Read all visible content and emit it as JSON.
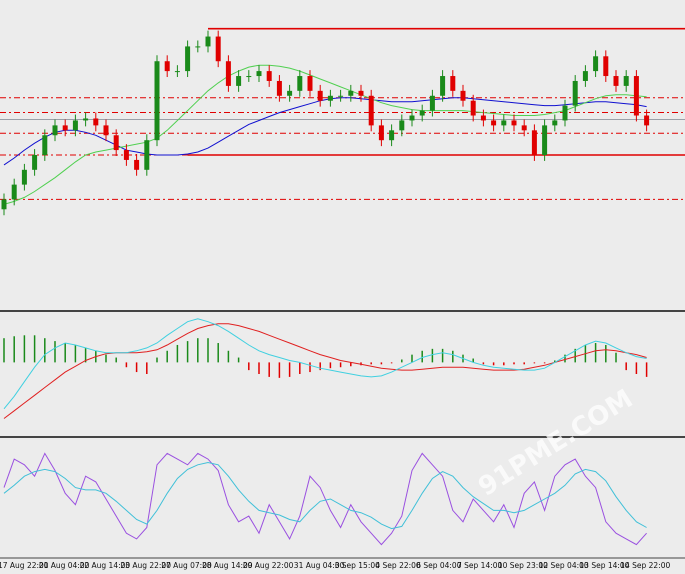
{
  "watermark": "91PME.COM",
  "chart_data": [
    {
      "type": "candlestick",
      "ylim": [
        0,
        310
      ],
      "up_color": "#1a8a1a",
      "down_color": "#e00000",
      "open": [
        100,
        110,
        125,
        140,
        155,
        175,
        185,
        180,
        190,
        192,
        185,
        175,
        160,
        150,
        140,
        170,
        250,
        240,
        240,
        265,
        265,
        275,
        250,
        225,
        235,
        235,
        240,
        230,
        215,
        220,
        235,
        220,
        210,
        215,
        215,
        220,
        215,
        185,
        170,
        180,
        190,
        195,
        200,
        215,
        235,
        220,
        210,
        195,
        190,
        185,
        190,
        185,
        180,
        155,
        185,
        190,
        205,
        230,
        240,
        255,
        235,
        225,
        235,
        195
      ],
      "high": [
        116,
        131,
        146,
        161,
        181,
        191,
        191,
        196,
        198,
        198,
        191,
        181,
        166,
        156,
        176,
        256,
        256,
        246,
        271,
        271,
        281,
        281,
        256,
        241,
        241,
        246,
        246,
        236,
        226,
        241,
        241,
        226,
        221,
        221,
        226,
        226,
        221,
        191,
        186,
        196,
        201,
        206,
        221,
        241,
        241,
        226,
        216,
        201,
        196,
        196,
        196,
        191,
        186,
        191,
        196,
        211,
        236,
        246,
        261,
        261,
        241,
        241,
        241,
        201
      ],
      "low": [
        94,
        104,
        119,
        134,
        149,
        169,
        174,
        174,
        184,
        179,
        169,
        154,
        144,
        134,
        134,
        164,
        234,
        234,
        234,
        259,
        259,
        244,
        219,
        219,
        229,
        229,
        224,
        209,
        209,
        214,
        214,
        204,
        204,
        209,
        209,
        209,
        179,
        164,
        164,
        174,
        184,
        189,
        194,
        209,
        214,
        204,
        189,
        184,
        179,
        179,
        179,
        174,
        149,
        149,
        179,
        184,
        199,
        224,
        234,
        229,
        219,
        219,
        189,
        179
      ],
      "close": [
        110,
        125,
        140,
        155,
        175,
        185,
        180,
        190,
        192,
        185,
        175,
        160,
        150,
        140,
        170,
        250,
        240,
        240,
        265,
        265,
        275,
        250,
        225,
        235,
        235,
        240,
        230,
        215,
        220,
        235,
        220,
        210,
        215,
        215,
        220,
        215,
        185,
        170,
        180,
        190,
        195,
        200,
        215,
        235,
        220,
        210,
        195,
        190,
        185,
        190,
        185,
        180,
        155,
        185,
        190,
        205,
        230,
        240,
        255,
        235,
        225,
        235,
        195,
        185
      ],
      "series": [
        {
          "color": "#1010d0",
          "values": [
            145,
            152,
            160,
            167,
            173,
            178,
            180,
            180,
            178,
            175,
            170,
            165,
            160,
            158,
            156,
            155,
            155,
            155,
            156,
            158,
            162,
            168,
            174,
            180,
            186,
            190,
            194,
            198,
            201,
            204,
            207,
            210,
            212,
            213,
            213,
            212,
            211,
            210,
            209,
            209,
            209,
            210,
            211,
            212,
            213,
            213,
            212,
            211,
            210,
            209,
            208,
            207,
            206,
            205,
            205,
            206,
            207,
            208,
            209,
            209,
            208,
            207,
            206,
            204
          ]
        },
        {
          "color": "#50d050",
          "values": [
            105,
            108,
            112,
            118,
            125,
            132,
            140,
            148,
            155,
            158,
            160,
            162,
            164,
            166,
            168,
            172,
            180,
            190,
            200,
            210,
            220,
            228,
            235,
            240,
            244,
            246,
            246,
            245,
            243,
            240,
            236,
            232,
            228,
            224,
            220,
            216,
            212,
            208,
            205,
            203,
            201,
            200,
            200,
            200,
            200,
            200,
            199,
            198,
            197,
            196,
            195,
            195,
            195,
            196,
            198,
            200,
            204,
            208,
            212,
            215,
            216,
            216,
            215,
            214
          ]
        }
      ],
      "levels": [
        {
          "value": 213,
          "style": "dash",
          "color": "#e00000"
        },
        {
          "value": 198,
          "style": "dash",
          "color": "#e00000"
        },
        {
          "value": 191,
          "style": "solid",
          "color": "#9aa0a8"
        },
        {
          "value": 177,
          "style": "dash",
          "color": "#e00000"
        },
        {
          "value": 155,
          "style": "dash",
          "color": "#e00000"
        },
        {
          "value": 110,
          "style": "dash",
          "color": "#e00000"
        },
        {
          "value": 155,
          "style": "solid",
          "color": "#e00000",
          "from": 18
        },
        {
          "value": 283,
          "style": "solid",
          "color": "#e00000",
          "from": 20
        }
      ]
    },
    {
      "type": "macd",
      "ylim": [
        -74,
        50
      ],
      "up_color": "#1a8a1a",
      "down_color": "#e00000",
      "values": [
        25,
        27,
        28,
        28,
        25,
        22,
        20,
        18,
        15,
        12,
        8,
        5,
        -5,
        -10,
        -12,
        5,
        12,
        18,
        22,
        25,
        25,
        20,
        12,
        5,
        -8,
        -12,
        -15,
        -16,
        -15,
        -12,
        -10,
        -8,
        -6,
        -5,
        -4,
        -3,
        -2,
        -2,
        -1,
        3,
        8,
        12,
        14,
        14,
        12,
        8,
        4,
        -2,
        -3,
        -3,
        -2,
        -2,
        -1,
        -1,
        2,
        8,
        14,
        18,
        20,
        18,
        10,
        -8,
        -12,
        -15
      ],
      "series": [
        {
          "color": "#e02020",
          "values": [
            -58,
            -50,
            -42,
            -34,
            -26,
            -18,
            -10,
            -4,
            2,
            6,
            9,
            10,
            10,
            10,
            11,
            13,
            18,
            24,
            30,
            35,
            38,
            40,
            40,
            38,
            35,
            32,
            28,
            24,
            20,
            16,
            12,
            8,
            5,
            2,
            0,
            -2,
            -4,
            -6,
            -7,
            -8,
            -8,
            -7,
            -6,
            -5,
            -5,
            -5,
            -6,
            -7,
            -8,
            -8,
            -8,
            -7,
            -5,
            -3,
            0,
            3,
            6,
            9,
            12,
            13,
            12,
            10,
            8,
            5
          ]
        },
        {
          "color": "#40d0e0",
          "values": [
            -48,
            -35,
            -20,
            -5,
            8,
            15,
            20,
            18,
            15,
            12,
            10,
            10,
            10,
            12,
            15,
            20,
            28,
            35,
            42,
            45,
            42,
            38,
            32,
            25,
            18,
            12,
            8,
            5,
            2,
            0,
            -3,
            -6,
            -8,
            -10,
            -12,
            -14,
            -15,
            -14,
            -10,
            -5,
            0,
            5,
            8,
            10,
            8,
            4,
            0,
            -3,
            -5,
            -6,
            -7,
            -8,
            -8,
            -6,
            0,
            6,
            12,
            18,
            22,
            20,
            15,
            10,
            6,
            4
          ]
        }
      ]
    },
    {
      "type": "line",
      "ylim": [
        0,
        100
      ],
      "categories": [
        "17 Aug 22:00",
        null,
        null,
        null,
        "21 Aug 04:00",
        null,
        null,
        null,
        "22 Aug 14:00",
        null,
        null,
        null,
        "23 Aug 22:00",
        null,
        null,
        null,
        "27 Aug 07:00",
        null,
        null,
        null,
        "28 Aug 14:00",
        null,
        null,
        null,
        "29 Aug 22:00",
        null,
        null,
        null,
        null,
        "31 Aug 04:00",
        null,
        null,
        null,
        "3 Sep 15:00",
        null,
        null,
        null,
        "4 Sep 22:00",
        null,
        null,
        null,
        "6 Sep 04:00",
        null,
        null,
        null,
        "7 Sep 14:00",
        null,
        null,
        null,
        "10 Sep 23:00",
        null,
        null,
        null,
        "12 Sep 04:00",
        null,
        null,
        null,
        "13 Sep 14:00",
        null,
        null,
        null,
        "14 Sep 22:00",
        null,
        null
      ],
      "series": [
        {
          "color": "#9a50e0",
          "values": [
            60,
            85,
            80,
            70,
            90,
            75,
            55,
            45,
            70,
            65,
            50,
            35,
            20,
            15,
            25,
            80,
            90,
            85,
            80,
            90,
            85,
            75,
            45,
            30,
            35,
            20,
            45,
            30,
            15,
            35,
            70,
            60,
            40,
            25,
            45,
            30,
            20,
            10,
            20,
            35,
            75,
            90,
            80,
            70,
            40,
            30,
            50,
            40,
            30,
            45,
            25,
            55,
            65,
            40,
            70,
            80,
            85,
            70,
            60,
            30,
            20,
            15,
            10,
            20
          ]
        },
        {
          "color": "#40c0d8",
          "values": [
            55,
            62,
            70,
            74,
            76,
            74,
            68,
            60,
            58,
            58,
            55,
            48,
            40,
            32,
            28,
            40,
            55,
            68,
            76,
            80,
            82,
            80,
            70,
            58,
            48,
            40,
            38,
            36,
            32,
            30,
            40,
            48,
            50,
            45,
            40,
            38,
            34,
            28,
            24,
            26,
            40,
            55,
            68,
            74,
            70,
            60,
            52,
            46,
            40,
            40,
            38,
            40,
            45,
            50,
            55,
            62,
            72,
            76,
            74,
            66,
            52,
            40,
            30,
            25
          ]
        }
      ]
    }
  ]
}
